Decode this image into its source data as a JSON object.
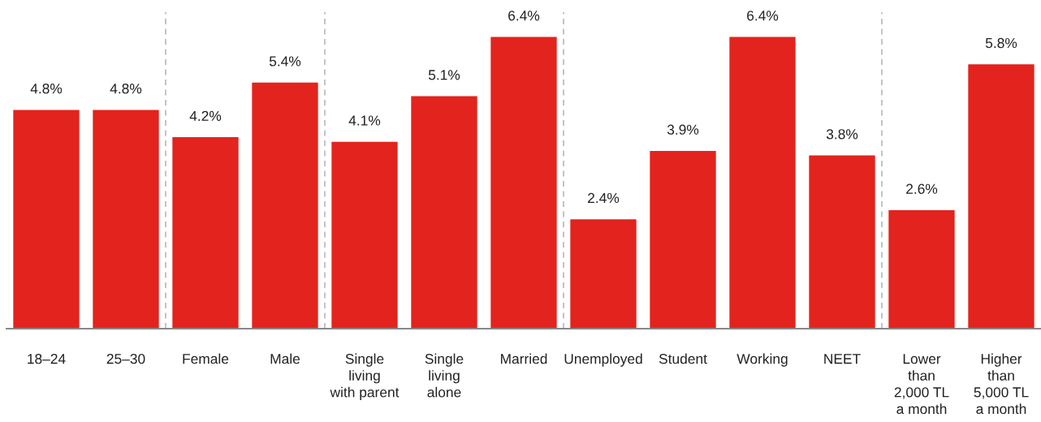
{
  "chart_data": {
    "type": "bar",
    "categories": [
      "18–24",
      "25–30",
      "Female",
      "Male",
      "Single\nliving\nwith parent",
      "Single\nliving\nalone",
      "Married",
      "Unemployed",
      "Student",
      "Working",
      "NEET",
      "Lower\nthan\n2,000 TL\na month",
      "Higher\nthan\n5,000 TL\na month"
    ],
    "values": [
      4.8,
      4.8,
      4.2,
      5.4,
      4.1,
      5.1,
      6.4,
      2.4,
      3.9,
      6.4,
      3.8,
      2.6,
      5.8
    ],
    "value_labels": [
      "4.8%",
      "4.8%",
      "4.2%",
      "5.4%",
      "4.1%",
      "5.1%",
      "6.4%",
      "2.4%",
      "3.9%",
      "6.4%",
      "3.8%",
      "2.6%",
      "5.8%"
    ],
    "color": "#e3231d",
    "grid": false,
    "legend": false
  }
}
